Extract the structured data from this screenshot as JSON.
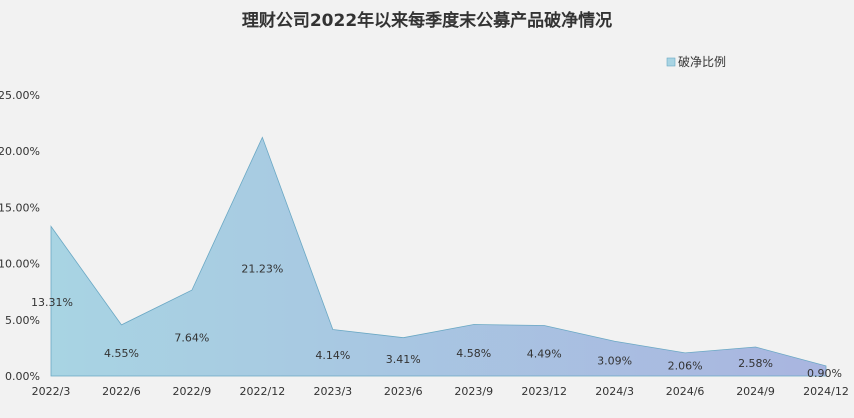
{
  "chart_data": {
    "type": "area",
    "title": "理财公司2022年以来每季度末公募产品破净情况",
    "categories": [
      "2022/3",
      "2022/6",
      "2022/9",
      "2022/12",
      "2023/3",
      "2023/6",
      "2023/9",
      "2023/12",
      "2024/3",
      "2024/6",
      "2024/9",
      "2024/12"
    ],
    "series": [
      {
        "name": "破净比例",
        "values": [
          13.31,
          4.55,
          7.64,
          21.23,
          4.14,
          3.41,
          4.58,
          4.49,
          3.09,
          2.06,
          2.58,
          0.9
        ],
        "value_labels": [
          "13.31%",
          "4.55%",
          "7.64%",
          "21.23%",
          "4.14%",
          "3.41%",
          "4.58%",
          "4.49%",
          "3.09%",
          "2.06%",
          "2.58%",
          "0.90%"
        ]
      }
    ],
    "y_ticks": [
      "0.00%",
      "5.00%",
      "10.00%",
      "15.00%",
      "20.00%",
      "25.00%"
    ],
    "ylim": [
      0,
      25
    ],
    "legend_position": "top-right",
    "grid": false,
    "colors": {
      "fill_start": "#a8d4e3",
      "fill_end": "#a9b5e0",
      "line": "#6aa8c4"
    }
  }
}
